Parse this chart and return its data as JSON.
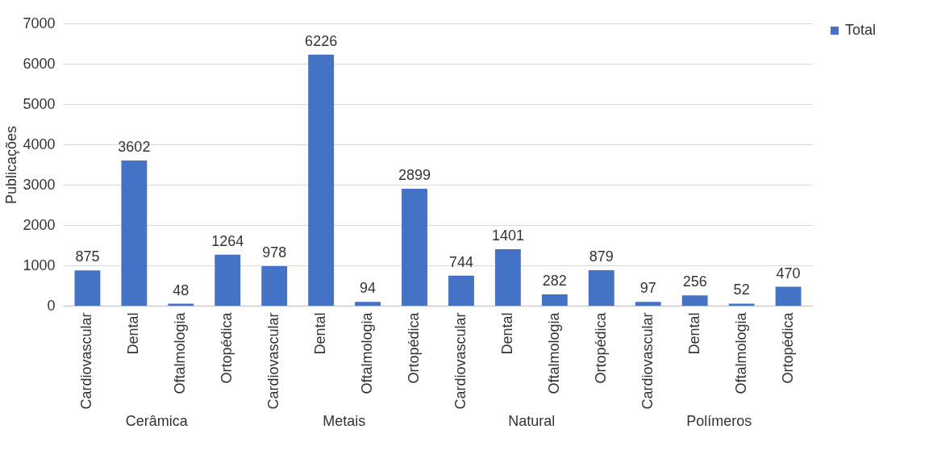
{
  "chart_data": {
    "type": "bar",
    "ylabel": "Publicações",
    "categories": [
      "Cardiovascular",
      "Dental",
      "Oftalmologia",
      "Ortopédica",
      "Cardiovascular",
      "Dental",
      "Oftalmologia",
      "Ortopédica",
      "Cardiovascular",
      "Dental",
      "Oftalmologia",
      "Ortopédica",
      "Cardiovascular",
      "Dental",
      "Oftalmologia",
      "Ortopédica"
    ],
    "series": [
      {
        "name": "Total",
        "color": "#4472c4",
        "values": [
          875,
          3602,
          48,
          1264,
          978,
          6226,
          94,
          2899,
          744,
          1401,
          282,
          879,
          97,
          256,
          52,
          470
        ]
      }
    ],
    "annotations": [
      "Cerâmica",
      "Metais",
      "Natural",
      "Polímeros"
    ],
    "ylim": [
      0,
      7000
    ],
    "yticks": [
      0,
      1000,
      2000,
      3000,
      4000,
      5000,
      6000,
      7000
    ],
    "grid": "y",
    "legend": "right",
    "data_labels": true
  }
}
